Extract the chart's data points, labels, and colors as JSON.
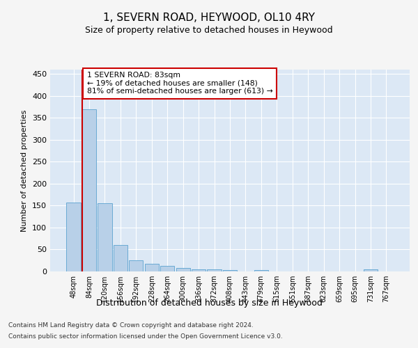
{
  "title": "1, SEVERN ROAD, HEYWOOD, OL10 4RY",
  "subtitle": "Size of property relative to detached houses in Heywood",
  "xlabel": "Distribution of detached houses by size in Heywood",
  "ylabel": "Number of detached properties",
  "bin_labels": [
    "48sqm",
    "84sqm",
    "120sqm",
    "156sqm",
    "192sqm",
    "228sqm",
    "264sqm",
    "300sqm",
    "336sqm",
    "372sqm",
    "408sqm",
    "443sqm",
    "479sqm",
    "515sqm",
    "551sqm",
    "587sqm",
    "623sqm",
    "659sqm",
    "695sqm",
    "731sqm",
    "767sqm"
  ],
  "bar_values": [
    157,
    370,
    155,
    60,
    25,
    18,
    13,
    8,
    5,
    5,
    3,
    0,
    3,
    0,
    0,
    0,
    0,
    0,
    0,
    4,
    0
  ],
  "bar_color": "#b8d0e8",
  "bar_edge_color": "#6aaad4",
  "subject_line_color": "#cc0000",
  "annotation_text": "1 SEVERN ROAD: 83sqm\n← 19% of detached houses are smaller (148)\n81% of semi-detached houses are larger (613) →",
  "annotation_box_color": "#ffffff",
  "annotation_box_edge": "#cc0000",
  "ylim": [
    0,
    460
  ],
  "yticks": [
    0,
    50,
    100,
    150,
    200,
    250,
    300,
    350,
    400,
    450
  ],
  "background_color": "#dce8f5",
  "grid_color": "#ffffff",
  "figure_bg": "#f5f5f5",
  "footer_line1": "Contains HM Land Registry data © Crown copyright and database right 2024.",
  "footer_line2": "Contains public sector information licensed under the Open Government Licence v3.0."
}
